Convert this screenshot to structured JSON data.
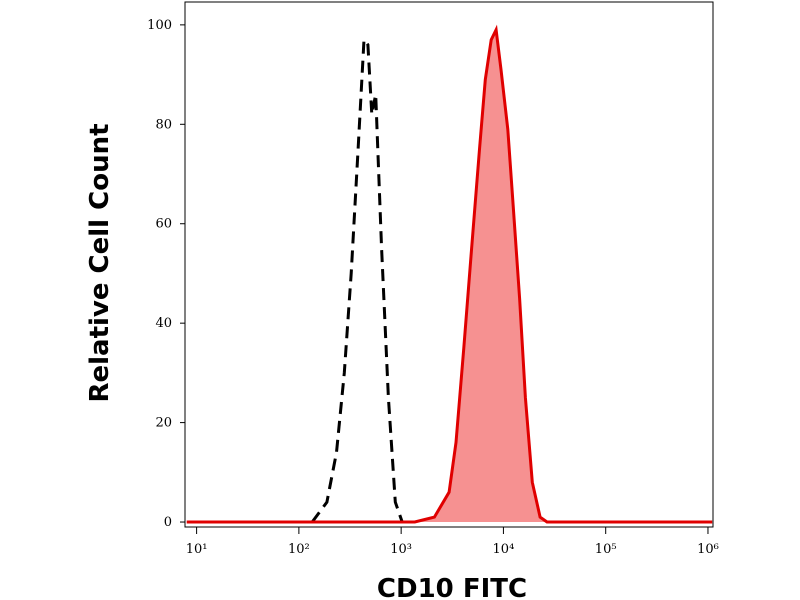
{
  "chart_data": {
    "type": "histogram-overlay",
    "xlabel": "CD10 FITC",
    "ylabel": "Relative Cell Count",
    "xscale": "log",
    "xlim": [
      7.7,
      1120000
    ],
    "ylim": [
      -1,
      104.6
    ],
    "xticks": [
      {
        "value": 10,
        "label": "10¹"
      },
      {
        "value": 100,
        "label": "10²"
      },
      {
        "value": 1000,
        "label": "10³"
      },
      {
        "value": 10000,
        "label": "10⁴"
      },
      {
        "value": 100000,
        "label": "10⁵"
      },
      {
        "value": 1000000,
        "label": "10⁶"
      }
    ],
    "yticks": [
      0,
      20,
      40,
      60,
      80,
      100
    ],
    "series": [
      {
        "color": "#000000",
        "style": "dashed",
        "filled": false,
        "x": [
          135,
          188,
          233,
          278,
          325,
          379,
          433,
          473,
          516,
          564,
          644,
          751,
          877,
          1023
        ],
        "values": [
          0,
          4,
          14,
          30,
          50,
          75,
          97,
          96,
          82,
          86,
          55,
          25,
          4,
          0
        ]
      },
      {
        "color": "#e00000",
        "fill": "#f69191",
        "style": "solid",
        "filled": true,
        "x": [
          8,
          1361,
          2115,
          2943,
          3436,
          4096,
          4884,
          5834,
          6653,
          7590,
          8472,
          9462,
          11040,
          12330,
          14390,
          16420,
          19140,
          22850,
          26670,
          1100000
        ],
        "values": [
          0,
          0,
          1,
          6,
          16,
          35,
          55,
          75,
          89,
          97,
          99,
          91,
          79,
          65,
          45,
          25,
          8,
          1,
          0,
          0
        ]
      }
    ]
  }
}
